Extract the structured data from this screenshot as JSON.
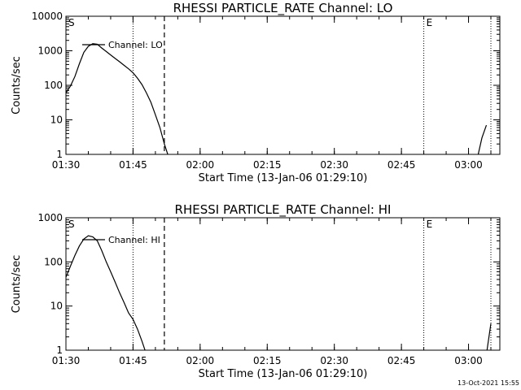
{
  "footer_timestamp": "13-Oct-2021 15:55",
  "chart_data": [
    {
      "type": "line",
      "title": "RHESSI PARTICLE_RATE Channel: LO",
      "xlabel": "Start Time (13-Jan-06 01:29:10)",
      "ylabel": "Counts/sec",
      "yscale": "log",
      "ylim": [
        1,
        10000
      ],
      "xlim": [
        "01:30",
        "03:07"
      ],
      "x_tick_labels": [
        "01:30",
        "01:45",
        "02:00",
        "02:15",
        "02:30",
        "02:45",
        "03:00"
      ],
      "y_tick_labels": [
        "1",
        "10",
        "100",
        "1000",
        "10000"
      ],
      "legend": "top-left",
      "series": [
        {
          "name": "Channel: LO",
          "segments": [
            {
              "x": [
                "01:30",
                "01:31",
                "01:32",
                "01:33",
                "01:34",
                "01:35",
                "01:36",
                "01:37",
                "01:38",
                "01:39",
                "01:40",
                "01:41",
                "01:42",
                "01:43",
                "01:44",
                "01:45",
                "01:46",
                "01:47",
                "01:48",
                "01:49",
                "01:50",
                "01:51",
                "01:52",
                "01:53"
              ],
              "y": [
                60,
                95,
                180,
                420,
                900,
                1350,
                1600,
                1550,
                1200,
                950,
                760,
                600,
                480,
                380,
                300,
                230,
                160,
                105,
                60,
                32,
                14,
                6,
                2,
                0.8
              ]
            },
            {
              "x": [
                "03:02",
                "03:03",
                "03:04"
              ],
              "y": [
                0.8,
                3,
                7
              ]
            }
          ]
        }
      ],
      "markers": [
        {
          "label": "S",
          "x": "01:30",
          "style": "dotted"
        },
        {
          "x": "01:45",
          "style": "dotted"
        },
        {
          "x": "01:52",
          "style": "dashed"
        },
        {
          "label": "E",
          "x": "02:50",
          "style": "dotted"
        },
        {
          "x": "03:05",
          "style": "dotted"
        }
      ]
    },
    {
      "type": "line",
      "title": "RHESSI PARTICLE_RATE Channel: HI",
      "xlabel": "Start Time (13-Jan-06 01:29:10)",
      "ylabel": "Counts/sec",
      "yscale": "log",
      "ylim": [
        1,
        1000
      ],
      "xlim": [
        "01:30",
        "03:07"
      ],
      "x_tick_labels": [
        "01:30",
        "01:45",
        "02:00",
        "02:15",
        "02:30",
        "02:45",
        "03:00"
      ],
      "y_tick_labels": [
        "1",
        "10",
        "100",
        "1000"
      ],
      "legend": "top-left",
      "series": [
        {
          "name": "Channel: HI",
          "segments": [
            {
              "x": [
                "01:30",
                "01:31",
                "01:32",
                "01:33",
                "01:34",
                "01:35",
                "01:36",
                "01:37",
                "01:38",
                "01:39",
                "01:40",
                "01:41",
                "01:42",
                "01:43",
                "01:44",
                "01:45",
                "01:46",
                "01:47",
                "01:48"
              ],
              "y": [
                45,
                80,
                140,
                230,
                330,
                390,
                370,
                300,
                180,
                100,
                60,
                35,
                20,
                12,
                7,
                5,
                3,
                1.6,
                0.8
              ]
            },
            {
              "x": [
                "03:04",
                "03:05"
              ],
              "y": [
                0.8,
                4
              ]
            }
          ]
        }
      ],
      "markers": [
        {
          "label": "S",
          "x": "01:30",
          "style": "dotted"
        },
        {
          "x": "01:45",
          "style": "dotted"
        },
        {
          "x": "01:52",
          "style": "dashed"
        },
        {
          "label": "E",
          "x": "02:50",
          "style": "dotted"
        },
        {
          "x": "03:05",
          "style": "dotted"
        }
      ]
    }
  ]
}
